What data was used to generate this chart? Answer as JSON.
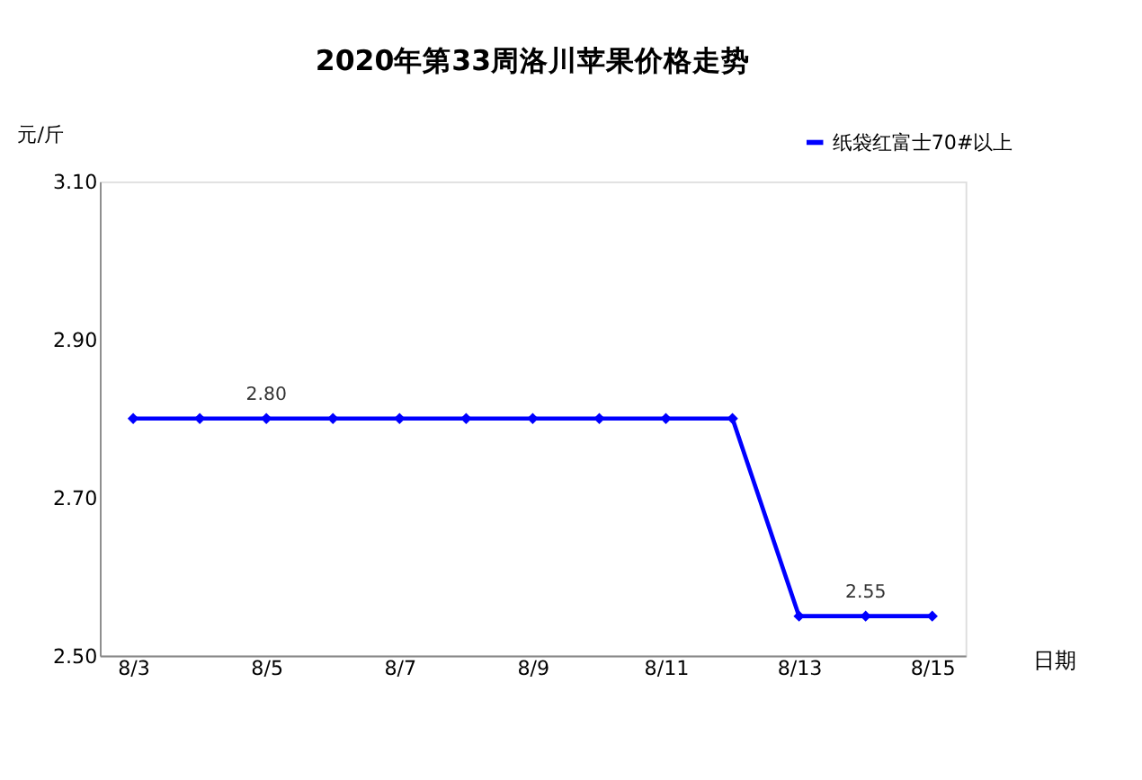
{
  "chart_data": {
    "type": "line",
    "title": "2020年第33周洛川苹果价格走势",
    "ylabel": "元/斤",
    "xlabel": "日期",
    "categories": [
      "8/3",
      null,
      "8/5",
      null,
      "8/7",
      null,
      "8/9",
      null,
      "8/11",
      null,
      "8/13",
      null,
      "8/15"
    ],
    "series": [
      {
        "name": "纸袋红富士70#以上",
        "color": "#0000ff",
        "values": [
          2.8,
          2.8,
          2.8,
          2.8,
          2.8,
          2.8,
          2.8,
          2.8,
          2.8,
          2.8,
          2.55,
          2.55,
          2.55
        ],
        "value_labels": [
          null,
          null,
          "2.80",
          null,
          null,
          null,
          null,
          null,
          null,
          null,
          null,
          "2.55",
          null
        ]
      }
    ],
    "ylim": [
      2.5,
      3.1
    ],
    "yticks": [
      {
        "value": 2.5,
        "label": "2.50"
      },
      {
        "value": 2.7,
        "label": "2.70"
      },
      {
        "value": 2.9,
        "label": "2.90"
      },
      {
        "value": 3.1,
        "label": "3.10"
      }
    ],
    "grid": false,
    "legend": "top right",
    "marker": "diamond",
    "line_style": "solid"
  }
}
